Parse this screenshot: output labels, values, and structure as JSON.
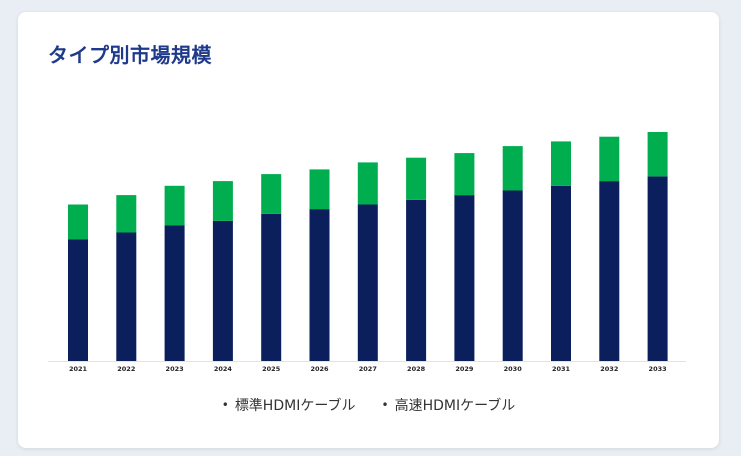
{
  "card": {
    "title": "タイプ別市場規模"
  },
  "colors": {
    "standard": "#0a1f5c",
    "high_speed": "#00ad4f",
    "title": "#1f3a8a"
  },
  "chart_data": {
    "type": "bar",
    "stacked": true,
    "categories": [
      "2021",
      "2022",
      "2023",
      "2024",
      "2025",
      "2026",
      "2027",
      "2028",
      "2029",
      "2030",
      "2031",
      "2032",
      "2033"
    ],
    "series": [
      {
        "name": "標準HDMIケーブル",
        "values": [
          52,
          55,
          58,
          60,
          63,
          65,
          67,
          69,
          71,
          73,
          75,
          77,
          79
        ]
      },
      {
        "name": "高速HDMIケーブル",
        "values": [
          15,
          16,
          17,
          17,
          17,
          17,
          18,
          18,
          18,
          19,
          19,
          19,
          19
        ]
      }
    ],
    "ylim": [
      0,
      110
    ],
    "grid": false,
    "legend": "bottom"
  }
}
